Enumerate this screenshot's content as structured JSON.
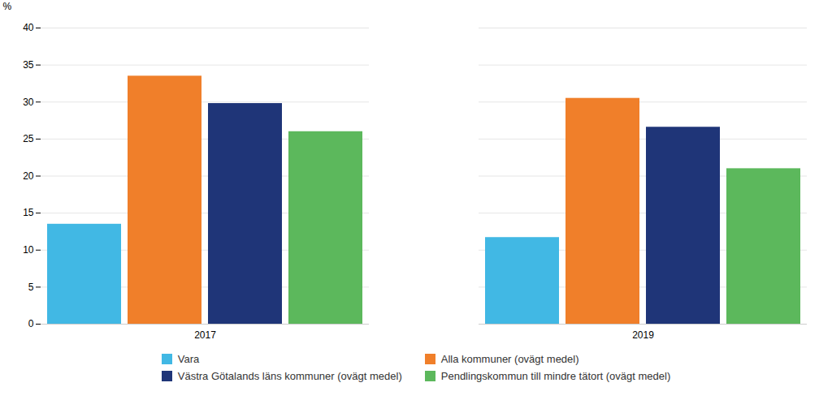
{
  "chart_data": {
    "type": "bar",
    "categories": [
      "2017",
      "2019"
    ],
    "series": [
      {
        "name": "Vara",
        "values": [
          13.5,
          11.7
        ],
        "color": "#41b8e4"
      },
      {
        "name": "Alla kommuner (ovägt medel)",
        "values": [
          33.5,
          30.5
        ],
        "color": "#f07f2a"
      },
      {
        "name": "Västra Götalands läns kommuner (ovägt medel)",
        "values": [
          29.8,
          26.6
        ],
        "color": "#1f3578"
      },
      {
        "name": "Pendlingskommun till mindre tätort (ovägt medel)",
        "values": [
          26.0,
          21.0
        ],
        "color": "#5cb85c"
      }
    ],
    "ylabel": "%",
    "ylim": [
      0,
      40
    ],
    "yticks": [
      0,
      5,
      10,
      15,
      20,
      25,
      30,
      35,
      40
    ],
    "grid": true,
    "legend": "bottom"
  }
}
